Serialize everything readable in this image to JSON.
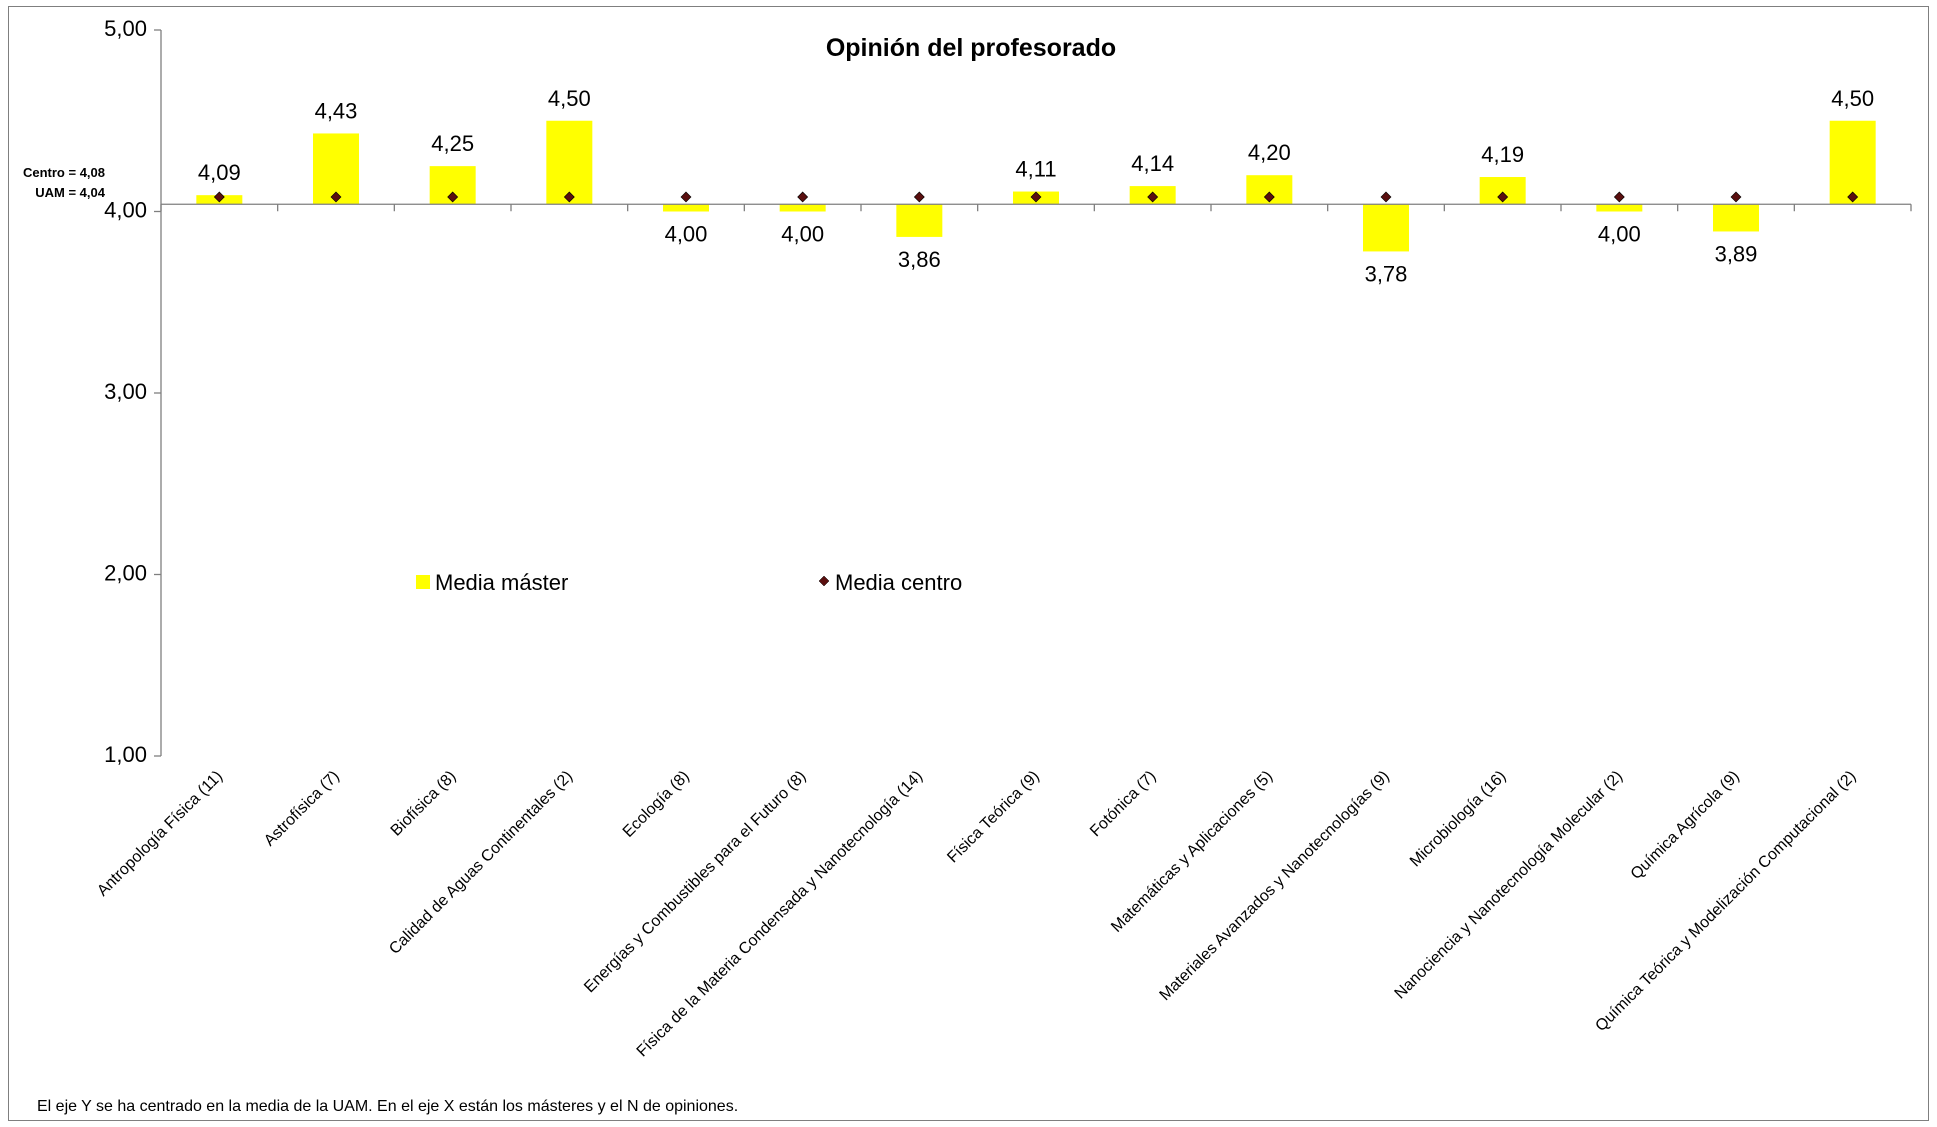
{
  "chart_data": {
    "type": "bar",
    "title": "Opinión del profesorado",
    "xlabel": "",
    "ylabel": "",
    "ylim": [
      1,
      5
    ],
    "baseline": 4.04,
    "y_ticks": [
      "1,00",
      "2,00",
      "3,00",
      "4,00",
      "5,00"
    ],
    "y_tick_values": [
      1,
      2,
      3,
      4,
      5
    ],
    "categories": [
      "Antropología Física (11)",
      "Astrofísica (7)",
      "Biofísica (8)",
      "Calidad de Aguas Continentales (2)",
      "Ecología (8)",
      "Energías y Combustibles para el Futuro (8)",
      "Física de la Materia Condensada y Nanotecnología (14)",
      "Física Teórica (9)",
      "Fotónica (7)",
      "Matemáticas y Aplicaciones (5)",
      "Materiales Avanzados y Nanotecnologías (9)",
      "Microbiología (16)",
      "Nanociencia y Nanotecnología Molecular (2)",
      "Química Agrícola (9)",
      "Química Teórica y Modelización Computacional (2)"
    ],
    "series": [
      {
        "name": "Media máster",
        "color": "#ffff00",
        "values": [
          4.09,
          4.43,
          4.25,
          4.5,
          4.0,
          4.0,
          3.86,
          4.11,
          4.14,
          4.2,
          3.78,
          4.19,
          4.0,
          3.89,
          4.5
        ],
        "labels": [
          "4,09",
          "4,43",
          "4,25",
          "4,50",
          "4,00",
          "4,00",
          "3,86",
          "4,11",
          "4,14",
          "4,20",
          "3,78",
          "4,19",
          "4,00",
          "3,89",
          "4,50"
        ]
      },
      {
        "name": "Media centro",
        "color": "#5a0f0f",
        "marker": "diamond",
        "values": [
          4.08,
          4.08,
          4.08,
          4.08,
          4.08,
          4.08,
          4.08,
          4.08,
          4.08,
          4.08,
          4.08,
          4.08,
          4.08,
          4.08,
          4.08
        ]
      }
    ],
    "reference_labels": [
      "Centro = 4,08",
      "UAM = 4,04"
    ],
    "legend_position": "middle-left",
    "grid": false
  },
  "footnote": "El eje Y se ha centrado en la media de la UAM. En el eje X están los másteres  y el N de opiniones."
}
